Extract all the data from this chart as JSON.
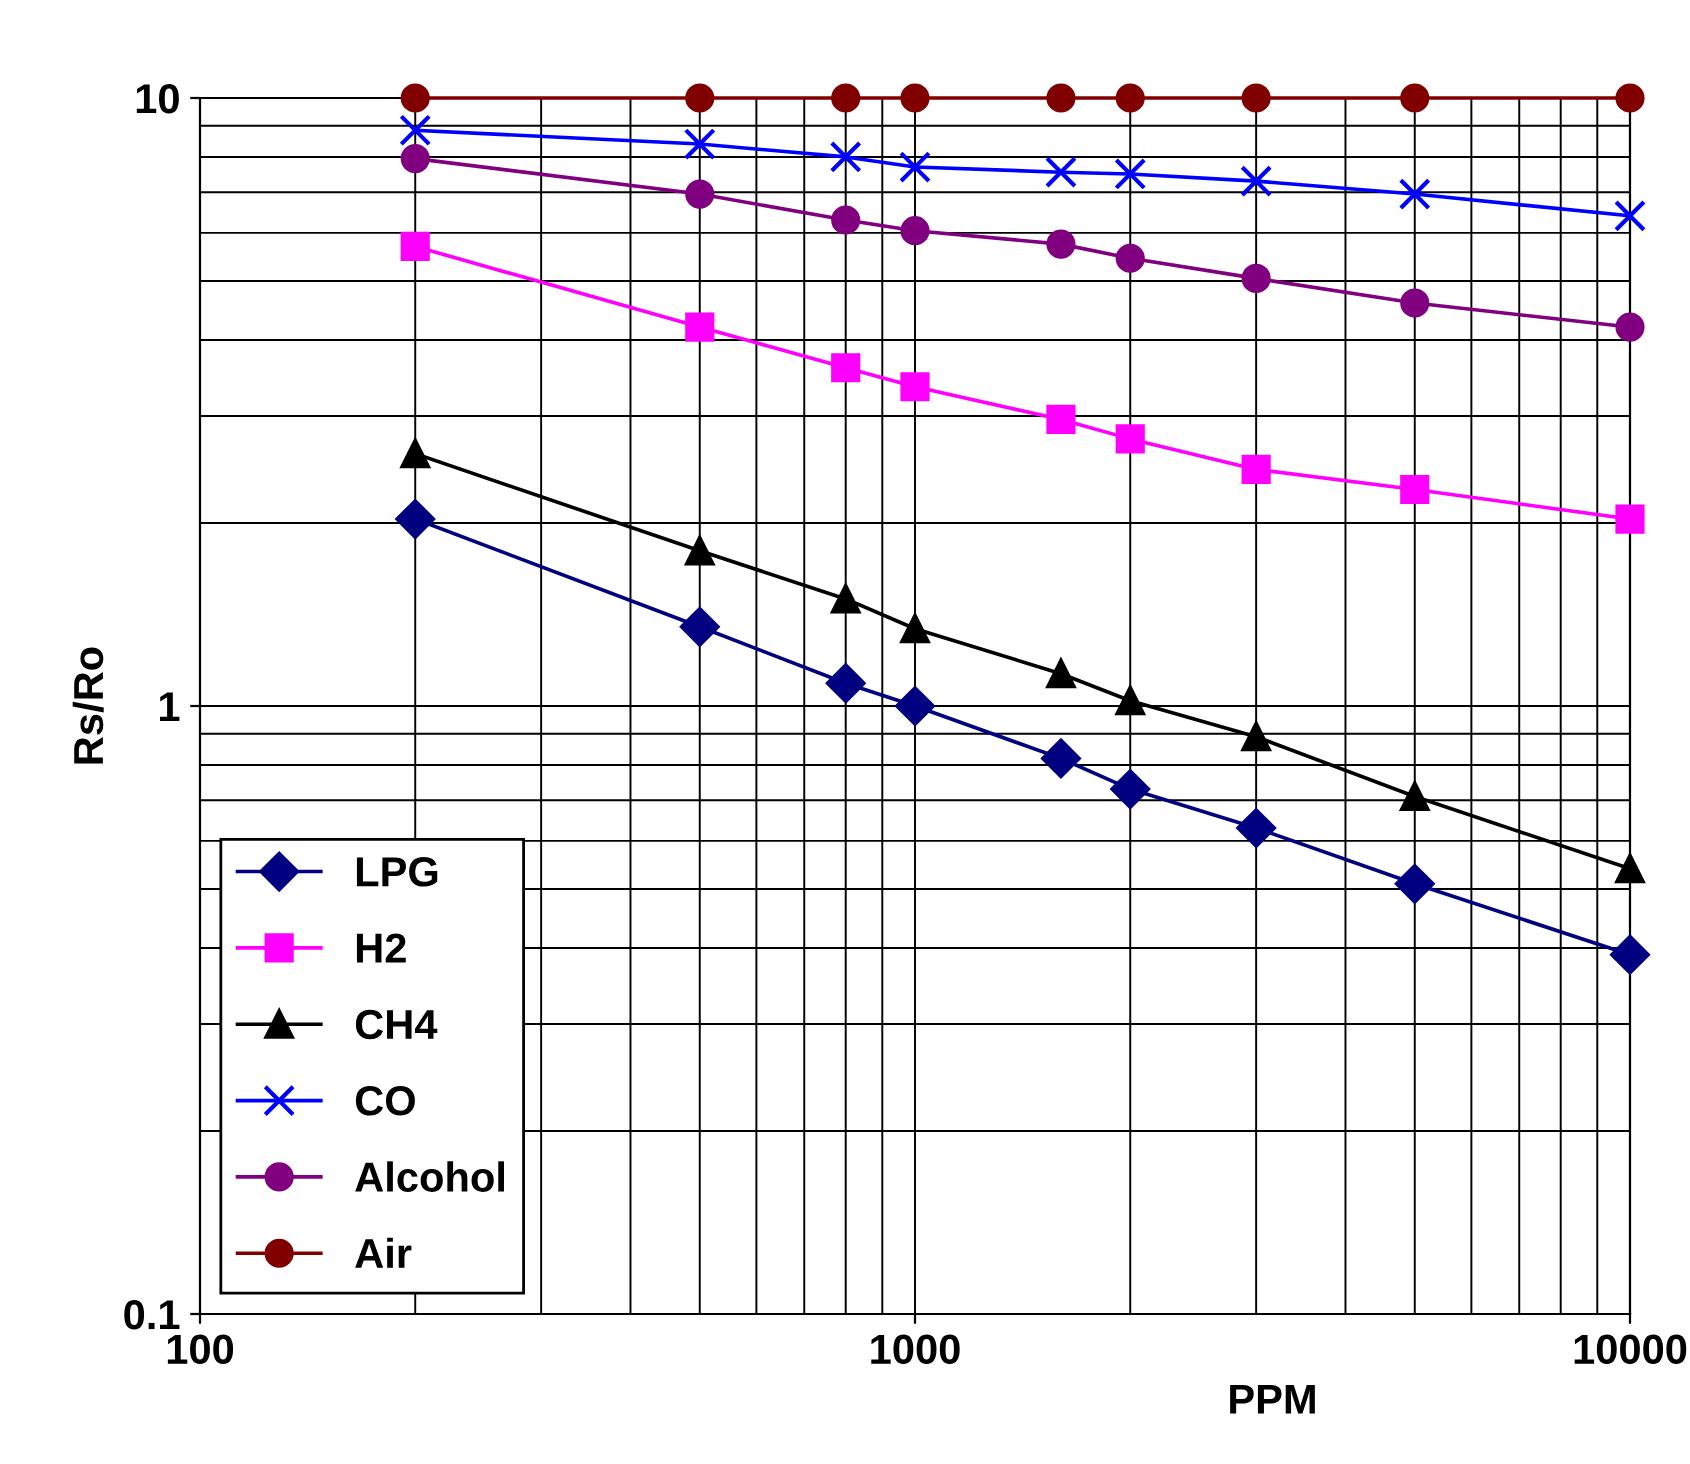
{
  "chart_data": {
    "type": "line",
    "xlabel": "PPM",
    "ylabel": "Rs/Ro",
    "x": [
      200,
      500,
      800,
      1000,
      1600,
      2000,
      3000,
      5000,
      10000
    ],
    "series": [
      {
        "name": "LPG",
        "color": "#000080",
        "marker": "diamond",
        "values": [
          2.03,
          1.35,
          1.09,
          1.0,
          0.82,
          0.73,
          0.63,
          0.51,
          0.39
        ]
      },
      {
        "name": "H2",
        "color": "#ff00ff",
        "marker": "square",
        "values": [
          5.7,
          4.2,
          3.6,
          3.35,
          2.96,
          2.75,
          2.45,
          2.27,
          2.03
        ]
      },
      {
        "name": "CH4",
        "color": "#000000",
        "marker": "triangle",
        "values": [
          2.6,
          1.8,
          1.5,
          1.34,
          1.13,
          1.02,
          0.89,
          0.71,
          0.54
        ]
      },
      {
        "name": "CO",
        "color": "#0000ff",
        "marker": "cross",
        "values": [
          8.85,
          8.4,
          8.0,
          7.7,
          7.55,
          7.5,
          7.3,
          6.95,
          6.4
        ]
      },
      {
        "name": "Alcohol",
        "color": "#800080",
        "marker": "circle",
        "values": [
          7.95,
          6.95,
          6.3,
          6.05,
          5.75,
          5.45,
          5.05,
          4.6,
          4.2
        ]
      },
      {
        "name": "Air",
        "color": "#800000",
        "marker": "circle",
        "values": [
          10,
          10,
          10,
          10,
          10,
          10,
          10,
          10,
          10
        ]
      }
    ],
    "log": "xy",
    "xlim": [
      100,
      10000
    ],
    "ylim": [
      0.1,
      10
    ],
    "xticks": [
      100,
      1000,
      10000
    ],
    "yticks": [
      0.1,
      1,
      10
    ],
    "grid": true,
    "legend": "bottom left"
  }
}
